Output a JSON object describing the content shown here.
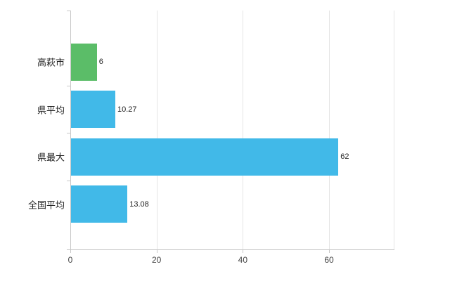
{
  "chart_data": {
    "type": "bar",
    "orientation": "horizontal",
    "title": "",
    "xlabel": "",
    "ylabel": "",
    "categories": [
      "高萩市",
      "県平均",
      "県最大",
      "全国平均"
    ],
    "values": [
      6,
      10.27,
      62,
      13.08
    ],
    "labels": [
      "6",
      "10.27",
      "62",
      "13.08"
    ],
    "colors": [
      "#5bbd68",
      "#41b9e8",
      "#41b9e8",
      "#41b9e8"
    ],
    "x_ticks": [
      0,
      20,
      40,
      60
    ],
    "xlim": [
      0,
      75
    ],
    "grid": true,
    "legend": false,
    "background": "#ffffff",
    "grid_color": "#e5e5e5",
    "axis_color": "#c8c8c8"
  }
}
